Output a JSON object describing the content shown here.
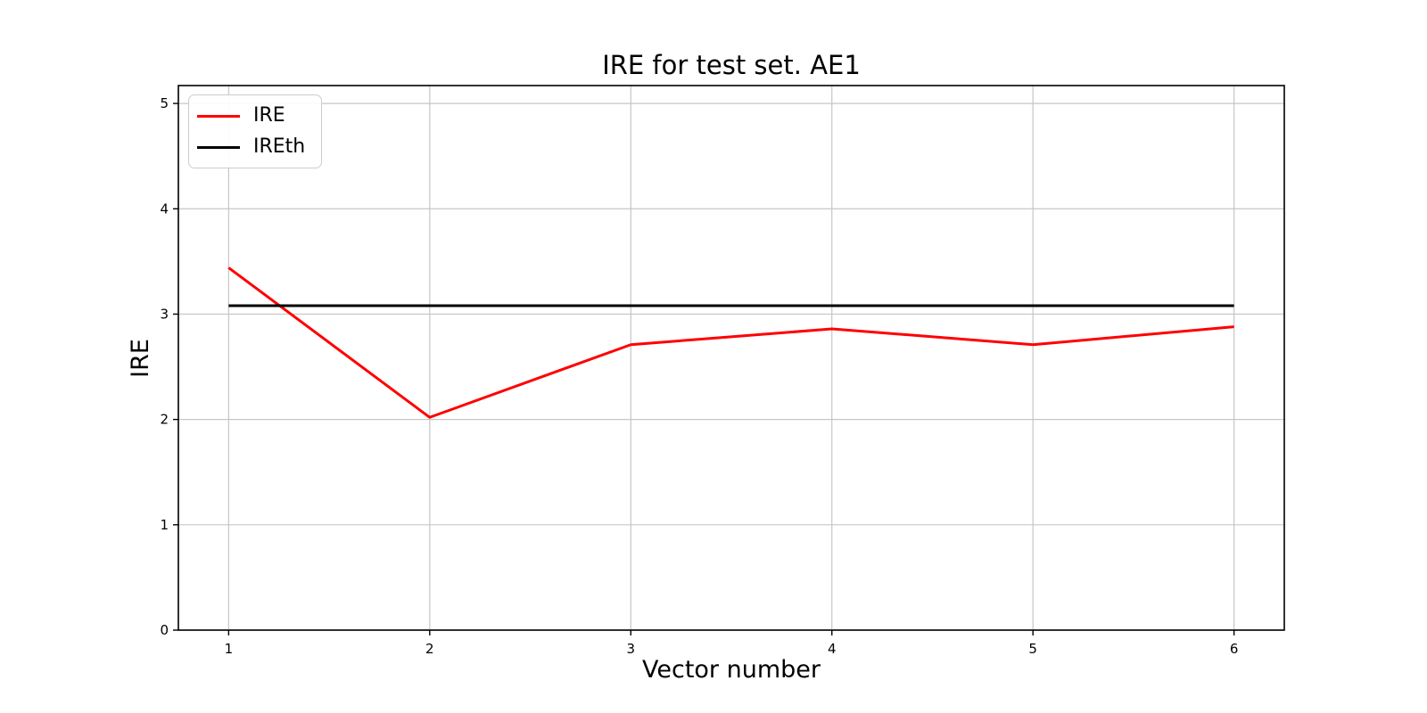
{
  "chart_data": {
    "type": "line",
    "title": "IRE for test set. AE1",
    "xlabel": "Vector number",
    "ylabel": "IRE",
    "x": [
      1,
      2,
      3,
      4,
      5,
      6
    ],
    "series": [
      {
        "name": "IRE",
        "color": "#ff0000",
        "values": [
          3.44,
          2.02,
          2.71,
          2.86,
          2.71,
          2.88
        ]
      },
      {
        "name": "IREth",
        "color": "#000000",
        "values": [
          3.08,
          3.08,
          3.08,
          3.08,
          3.08,
          3.08
        ]
      }
    ],
    "xticks": [
      1,
      2,
      3,
      4,
      5,
      6
    ],
    "yticks": [
      0,
      1,
      2,
      3,
      4,
      5
    ],
    "xlim": [
      0.75,
      6.25
    ],
    "ylim": [
      0,
      5.17
    ],
    "grid": true,
    "grid_color": "#c6c6c6",
    "legend_position": "upper-left",
    "legend_entries": [
      "IRE",
      "IREth"
    ]
  }
}
